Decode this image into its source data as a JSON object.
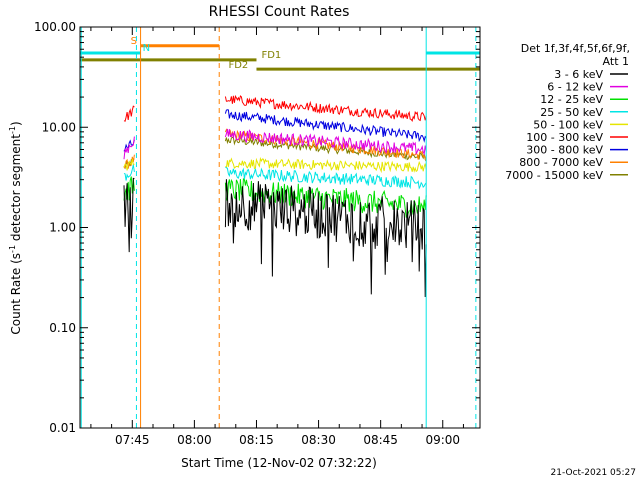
{
  "chart_data": {
    "type": "line",
    "title": "RHESSI Count Rates",
    "xlabel": "Start Time (12-Nov-02 07:32:22)",
    "ylabel_prefix": "Count Rate (s",
    "ylabel_sup": "-1",
    "ylabel_suffix": " detector segment",
    "ylabel_sup2": "-1",
    "ylabel_end": ")",
    "y_scale": "log",
    "ylim": [
      0.01,
      100
    ],
    "xlim": [
      "07:32:22",
      "09:09"
    ],
    "x_ticks": [
      "07:45",
      "08:00",
      "08:15",
      "08:30",
      "08:45",
      "09:00"
    ],
    "y_ticks": [
      "0.01",
      "0.10",
      "1.00",
      "10.00",
      "100.00"
    ],
    "legend": {
      "header": [
        "Det 1f,3f,4f,5f,6f,9f,",
        "Att 1"
      ],
      "entries": [
        {
          "label": "3 - 6 keV",
          "color": "#000000"
        },
        {
          "label": "6 - 12 keV",
          "color": "#e000e0"
        },
        {
          "label": "12 - 25 keV",
          "color": "#00e000"
        },
        {
          "label": "25 - 50 keV",
          "color": "#00e5e5"
        },
        {
          "label": "50 - 100 keV",
          "color": "#e5e500"
        },
        {
          "label": "100 - 300 keV",
          "color": "#ff0000"
        },
        {
          "label": "300 - 800 keV",
          "color": "#0000e0"
        },
        {
          "label": "800 - 7000 keV",
          "color": "#ff8000"
        },
        {
          "label": "7000 - 15000 keV",
          "color": "#808000"
        }
      ]
    },
    "segments": [
      {
        "name": "seg1",
        "start": "07:43:00",
        "end": "07:45:30"
      },
      {
        "name": "seg2",
        "start": "08:07:30",
        "end": "08:56:00"
      }
    ],
    "series": [
      {
        "name": "3 - 6 keV",
        "color": "#000000",
        "seg1": [
          1.5,
          2.0
        ],
        "seg2": [
          1.8,
          1.0
        ],
        "noise": 0.26
      },
      {
        "name": "6 - 12 keV",
        "color": "#e000e0",
        "seg1": [
          5.5,
          7.5
        ],
        "seg2": [
          8.5,
          6.0
        ],
        "noise": 0.06
      },
      {
        "name": "12 - 25 keV",
        "color": "#00e000",
        "seg1": [
          2.2,
          2.6
        ],
        "seg2": [
          2.4,
          1.6
        ],
        "noise": 0.12
      },
      {
        "name": "25 - 50 keV",
        "color": "#00e5e5",
        "seg1": [
          3.2,
          3.8
        ],
        "seg2": [
          3.5,
          2.8
        ],
        "noise": 0.06
      },
      {
        "name": "50 - 100 keV",
        "color": "#e5e500",
        "seg1": [
          4.0,
          4.5
        ],
        "seg2": [
          4.4,
          4.0
        ],
        "noise": 0.05
      },
      {
        "name": "100 - 300 keV",
        "color": "#ff0000",
        "seg1": [
          12.0,
          15.0
        ],
        "seg2": [
          19.0,
          12.5
        ],
        "noise": 0.05
      },
      {
        "name": "300 - 800 keV",
        "color": "#0000e0",
        "seg1": [
          6.0,
          7.0
        ],
        "seg2": [
          13.5,
          8.0
        ],
        "noise": 0.05
      },
      {
        "name": "800 - 7000 keV",
        "color": "#ff8000",
        "seg1": [
          4.0,
          4.8
        ],
        "seg2": [
          8.5,
          5.2
        ],
        "noise": 0.05
      },
      {
        "name": "7000 - 15000 keV",
        "color": "#808000",
        "seg1": [
          4.0,
          4.6
        ],
        "seg2": [
          7.5,
          5.0
        ],
        "noise": 0.04
      }
    ],
    "flag_bars": [
      {
        "label": "S",
        "color": "#ff8000",
        "start": "07:47",
        "end": "08:06",
        "level": 65
      },
      {
        "label": "N",
        "color": "#00e5e5",
        "start": "07:32:22",
        "end": "07:47",
        "level": 55
      },
      {
        "label": "",
        "color": "#00e5e5",
        "start": "08:56",
        "end": "09:09",
        "level": 55
      },
      {
        "label": "FD1",
        "color": "#808000",
        "start": "07:32:22",
        "end": "08:15",
        "level": 47
      },
      {
        "label": "FD2",
        "color": "#808000",
        "start": "08:15",
        "end": "09:09",
        "level": 38
      }
    ],
    "vlines": [
      {
        "time": "07:32:40",
        "color": "#00e5e5",
        "style": "solid"
      },
      {
        "time": "07:46",
        "color": "#00e5e5",
        "style": "dashed"
      },
      {
        "time": "07:47",
        "color": "#ff8000",
        "style": "solid"
      },
      {
        "time": "08:06",
        "color": "#ff8000",
        "style": "dashed"
      },
      {
        "time": "08:56",
        "color": "#00e5e5",
        "style": "solid"
      },
      {
        "time": "09:08",
        "color": "#00e5e5",
        "style": "dashed"
      }
    ]
  },
  "footer": {
    "timestamp": "21-Oct-2021 05:27"
  }
}
